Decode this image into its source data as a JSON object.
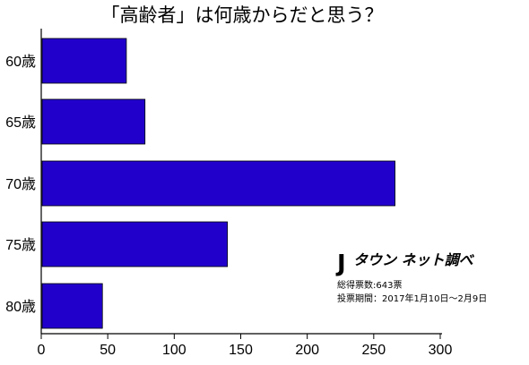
{
  "chart_data": {
    "type": "bar",
    "orientation": "horizontal",
    "title": "「高齢者」は何歳からだと思う？",
    "categories": [
      "60歳",
      "65歳",
      "70歳",
      "75歳",
      "80歳"
    ],
    "values": [
      64,
      78,
      266,
      140,
      46
    ],
    "xlim": [
      0,
      300
    ],
    "xticks": [
      0,
      50,
      100,
      150,
      200,
      250,
      300
    ],
    "grid": false,
    "bar_color": "#2200cc"
  },
  "brand": {
    "mark": "J",
    "name": "タウン ネット調べ"
  },
  "notes": {
    "total_votes": "総得票数:643票",
    "period": "投票期間：2017年1月10日〜2月9日"
  }
}
